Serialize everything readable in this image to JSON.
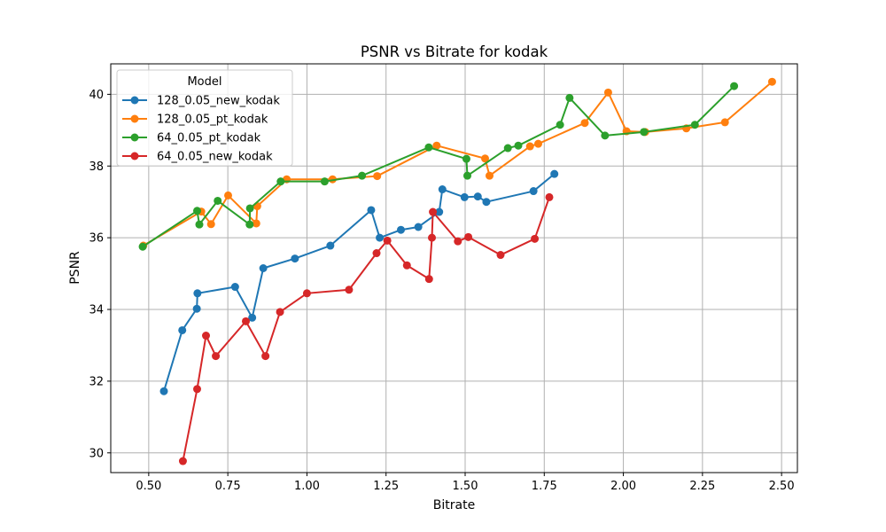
{
  "chart_data": {
    "type": "line",
    "title": "PSNR vs Bitrate for kodak",
    "xlabel": "Bitrate",
    "ylabel": "PSNR",
    "xlim": [
      0.38,
      2.55
    ],
    "ylim": [
      29.45,
      40.85
    ],
    "xticks": [
      0.5,
      0.75,
      1.0,
      1.25,
      1.5,
      1.75,
      2.0,
      2.25,
      2.5
    ],
    "xtick_labels": [
      "0.50",
      "0.75",
      "1.00",
      "1.25",
      "1.50",
      "1.75",
      "2.00",
      "2.25",
      "2.50"
    ],
    "yticks": [
      30,
      32,
      34,
      36,
      38,
      40
    ],
    "ytick_labels": [
      "30",
      "32",
      "34",
      "36",
      "38",
      "40"
    ],
    "grid": true,
    "legend": {
      "title": "Model",
      "placement": "top-left"
    },
    "series": [
      {
        "name": "128_0.05_new_kodak",
        "color": "#1f77b4",
        "points": [
          [
            0.548,
            31.72
          ],
          [
            0.606,
            33.42
          ],
          [
            0.652,
            34.02
          ],
          [
            0.654,
            34.45
          ],
          [
            0.773,
            34.63
          ],
          [
            0.827,
            33.77
          ],
          [
            0.862,
            35.15
          ],
          [
            0.962,
            35.42
          ],
          [
            1.074,
            35.78
          ],
          [
            1.203,
            36.77
          ],
          [
            1.23,
            36.0
          ],
          [
            1.297,
            36.22
          ],
          [
            1.352,
            36.3
          ],
          [
            1.418,
            36.72
          ],
          [
            1.428,
            37.35
          ],
          [
            1.498,
            37.13
          ],
          [
            1.54,
            37.15
          ],
          [
            1.567,
            37.0
          ],
          [
            1.716,
            37.3
          ],
          [
            1.782,
            37.78
          ]
        ]
      },
      {
        "name": "128_0.05_pt_kodak",
        "color": "#ff7f0e",
        "points": [
          [
            0.483,
            35.78
          ],
          [
            0.666,
            36.73
          ],
          [
            0.697,
            36.38
          ],
          [
            0.751,
            37.18
          ],
          [
            0.84,
            36.4
          ],
          [
            0.843,
            36.88
          ],
          [
            0.936,
            37.63
          ],
          [
            1.081,
            37.63
          ],
          [
            1.222,
            37.72
          ],
          [
            1.41,
            38.57
          ],
          [
            1.563,
            38.21
          ],
          [
            1.577,
            37.73
          ],
          [
            1.705,
            38.55
          ],
          [
            1.731,
            38.62
          ],
          [
            1.878,
            39.2
          ],
          [
            1.952,
            40.05
          ],
          [
            2.01,
            38.97
          ],
          [
            2.069,
            38.95
          ],
          [
            2.199,
            39.05
          ],
          [
            2.321,
            39.22
          ],
          [
            2.47,
            40.35
          ]
        ]
      },
      {
        "name": "64_0.05_pt_kodak",
        "color": "#2ca02c",
        "points": [
          [
            0.481,
            35.75
          ],
          [
            0.653,
            36.75
          ],
          [
            0.66,
            36.37
          ],
          [
            0.718,
            37.03
          ],
          [
            0.819,
            36.37
          ],
          [
            0.82,
            36.82
          ],
          [
            0.917,
            37.57
          ],
          [
            1.056,
            37.57
          ],
          [
            1.174,
            37.73
          ],
          [
            1.385,
            38.52
          ],
          [
            1.504,
            38.2
          ],
          [
            1.507,
            37.73
          ],
          [
            1.635,
            38.5
          ],
          [
            1.668,
            38.57
          ],
          [
            1.8,
            39.15
          ],
          [
            1.83,
            39.9
          ],
          [
            1.942,
            38.85
          ],
          [
            2.065,
            38.95
          ],
          [
            2.226,
            39.15
          ],
          [
            2.35,
            40.23
          ]
        ]
      },
      {
        "name": "64_0.05_new_kodak",
        "color": "#d62728",
        "points": [
          [
            0.608,
            29.77
          ],
          [
            0.653,
            31.78
          ],
          [
            0.681,
            33.27
          ],
          [
            0.712,
            32.7
          ],
          [
            0.807,
            33.67
          ],
          [
            0.869,
            32.7
          ],
          [
            0.915,
            33.93
          ],
          [
            1.0,
            34.45
          ],
          [
            1.133,
            34.55
          ],
          [
            1.22,
            35.57
          ],
          [
            1.254,
            35.92
          ],
          [
            1.316,
            35.23
          ],
          [
            1.386,
            34.85
          ],
          [
            1.395,
            36.0
          ],
          [
            1.398,
            36.72
          ],
          [
            1.477,
            35.9
          ],
          [
            1.51,
            36.02
          ],
          [
            1.612,
            35.52
          ],
          [
            1.72,
            35.97
          ],
          [
            1.766,
            37.13
          ]
        ]
      }
    ]
  }
}
